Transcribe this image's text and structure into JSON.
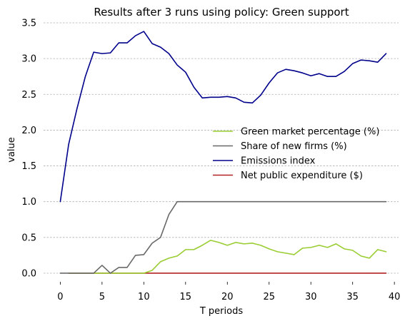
{
  "chart_data": {
    "type": "line",
    "title": "Results after 3 runs using policy: Green support",
    "xlabel": "T periods",
    "ylabel": "value",
    "xlim": [
      -2,
      40.5
    ],
    "ylim": [
      -0.12,
      3.55
    ],
    "xticks": [
      0,
      5,
      10,
      15,
      20,
      25,
      30,
      35,
      40
    ],
    "yticks": [
      0.0,
      0.5,
      1.0,
      1.5,
      2.0,
      2.5,
      3.0,
      3.5
    ],
    "xtick_labels": [
      "0",
      "5",
      "10",
      "15",
      "20",
      "25",
      "30",
      "35",
      "40"
    ],
    "ytick_labels": [
      "0.0",
      "0.5",
      "1.0",
      "1.5",
      "2.0",
      "2.5",
      "3.0",
      "3.5"
    ],
    "grid": "horizontal dashed",
    "legend_position": "center-right",
    "series": [
      {
        "name": "Green market percentage (%)",
        "color": "#9acd32",
        "x": [
          1,
          2,
          3,
          4,
          5,
          6,
          7,
          8,
          9,
          10,
          11,
          12,
          13,
          14,
          15,
          16,
          17,
          18,
          19,
          20,
          21,
          22,
          23,
          24,
          25,
          26,
          27,
          28,
          29,
          30,
          31,
          32,
          33,
          34,
          35,
          36,
          37,
          38,
          39
        ],
        "y": [
          0,
          0,
          0,
          0,
          0,
          0,
          0,
          0,
          0,
          0,
          0.04,
          0.16,
          0.21,
          0.24,
          0.33,
          0.33,
          0.39,
          0.46,
          0.43,
          0.39,
          0.43,
          0.41,
          0.42,
          0.39,
          0.34,
          0.3,
          0.28,
          0.26,
          0.35,
          0.36,
          0.39,
          0.36,
          0.41,
          0.34,
          0.32,
          0.24,
          0.21,
          0.33,
          0.3
        ]
      },
      {
        "name": "Share of new firms (%)",
        "color": "#696969",
        "x": [
          0,
          1,
          2,
          3,
          4,
          5,
          6,
          7,
          8,
          9,
          10,
          11,
          12,
          13,
          14,
          15,
          16,
          17,
          18,
          19,
          20,
          21,
          22,
          23,
          24,
          25,
          26,
          27,
          28,
          29,
          30,
          31,
          32,
          33,
          34,
          35,
          36,
          37,
          38,
          39
        ],
        "y": [
          0,
          0,
          0,
          0,
          0,
          0.11,
          0,
          0.08,
          0.08,
          0.25,
          0.26,
          0.42,
          0.5,
          0.82,
          1.0,
          1.0,
          1.0,
          1.0,
          1.0,
          1.0,
          1.0,
          1.0,
          1.0,
          1.0,
          1.0,
          1.0,
          1.0,
          1.0,
          1.0,
          1.0,
          1.0,
          1.0,
          1.0,
          1.0,
          1.0,
          1.0,
          1.0,
          1.0,
          1.0,
          1.0
        ]
      },
      {
        "name": "Emissions index",
        "color": "#00008b",
        "x": [
          0,
          1,
          2,
          3,
          4,
          5,
          6,
          7,
          8,
          9,
          10,
          11,
          12,
          13,
          14,
          15,
          16,
          17,
          18,
          19,
          20,
          21,
          22,
          23,
          24,
          25,
          26,
          27,
          28,
          29,
          30,
          31,
          32,
          33,
          34,
          35,
          36,
          37,
          38,
          39
        ],
        "y": [
          1.0,
          1.8,
          2.3,
          2.75,
          3.09,
          3.07,
          3.08,
          3.22,
          3.22,
          3.32,
          3.38,
          3.21,
          3.16,
          3.07,
          2.91,
          2.81,
          2.6,
          2.45,
          2.46,
          2.46,
          2.47,
          2.45,
          2.39,
          2.38,
          2.49,
          2.66,
          2.8,
          2.85,
          2.83,
          2.8,
          2.76,
          2.79,
          2.75,
          2.75,
          2.82,
          2.93,
          2.98,
          2.97,
          2.95,
          3.07
        ]
      },
      {
        "name": "Net public expenditure ($)",
        "color": "#b22222",
        "x": [
          1,
          2,
          3,
          4,
          5,
          6,
          7,
          8,
          9,
          10,
          11,
          12,
          13,
          14,
          15,
          16,
          17,
          18,
          19,
          20,
          21,
          22,
          23,
          24,
          25,
          26,
          27,
          28,
          29,
          30,
          31,
          32,
          33,
          34,
          35,
          36,
          37,
          38,
          39
        ],
        "y": [
          0,
          0,
          0,
          0,
          0,
          0,
          0,
          0,
          0,
          0,
          0,
          0,
          0,
          0,
          0,
          0,
          0,
          0,
          0,
          0,
          0,
          0,
          0,
          0,
          0,
          0,
          0,
          0,
          0,
          0,
          0,
          0,
          0,
          0,
          0,
          0,
          0,
          0,
          0
        ]
      }
    ]
  }
}
